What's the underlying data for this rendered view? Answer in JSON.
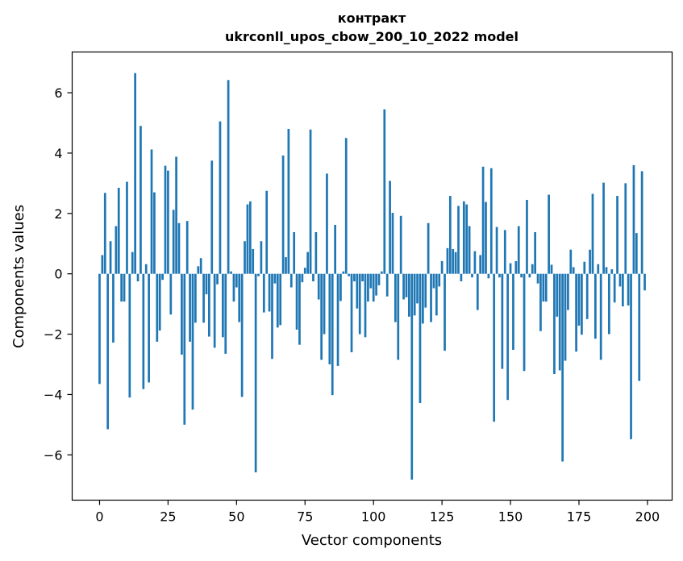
{
  "chart_data": {
    "type": "bar",
    "title": "контракт",
    "subtitle": "ukrconll_upos_cbow_200_10_2022 model",
    "xlabel": "Vector components",
    "ylabel": "Components values",
    "xlim": [
      -10,
      209
    ],
    "ylim": [
      -7.5,
      7.35
    ],
    "xticks": [
      0,
      25,
      50,
      75,
      100,
      125,
      150,
      175,
      200
    ],
    "yticks": [
      -6,
      -4,
      -2,
      0,
      2,
      4,
      6
    ],
    "xtick_labels": [
      "0",
      "25",
      "50",
      "75",
      "100",
      "125",
      "150",
      "175",
      "200"
    ],
    "ytick_labels": [
      "−6",
      "−4",
      "−2",
      "0",
      "2",
      "4",
      "6"
    ],
    "bar_color": "#1f77b4",
    "grid": false,
    "x": [
      0,
      1,
      2,
      3,
      4,
      5,
      6,
      7,
      8,
      9,
      10,
      11,
      12,
      13,
      14,
      15,
      16,
      17,
      18,
      19,
      20,
      21,
      22,
      23,
      24,
      25,
      26,
      27,
      28,
      29,
      30,
      31,
      32,
      33,
      34,
      35,
      36,
      37,
      38,
      39,
      40,
      41,
      42,
      43,
      44,
      45,
      46,
      47,
      48,
      49,
      50,
      51,
      52,
      53,
      54,
      55,
      56,
      57,
      58,
      59,
      60,
      61,
      62,
      63,
      64,
      65,
      66,
      67,
      68,
      69,
      70,
      71,
      72,
      73,
      74,
      75,
      76,
      77,
      78,
      79,
      80,
      81,
      82,
      83,
      84,
      85,
      86,
      87,
      88,
      89,
      90,
      91,
      92,
      93,
      94,
      95,
      96,
      97,
      98,
      99,
      100,
      101,
      102,
      103,
      104,
      105,
      106,
      107,
      108,
      109,
      110,
      111,
      112,
      113,
      114,
      115,
      116,
      117,
      118,
      119,
      120,
      121,
      122,
      123,
      124,
      125,
      126,
      127,
      128,
      129,
      130,
      131,
      132,
      133,
      134,
      135,
      136,
      137,
      138,
      139,
      140,
      141,
      142,
      143,
      144,
      145,
      146,
      147,
      148,
      149,
      150,
      151,
      152,
      153,
      154,
      155,
      156,
      157,
      158,
      159,
      160,
      161,
      162,
      163,
      164,
      165,
      166,
      167,
      168,
      169,
      170,
      171,
      172,
      173,
      174,
      175,
      176,
      177,
      178,
      179,
      180,
      181,
      182,
      183,
      184,
      185,
      186,
      187,
      188,
      189,
      190,
      191,
      192,
      193,
      194,
      195,
      196,
      197,
      198,
      199
    ],
    "values": [
      -3.65,
      0.62,
      2.68,
      -5.15,
      1.08,
      -2.28,
      1.58,
      2.85,
      -0.92,
      -0.92,
      3.05,
      -4.1,
      0.72,
      6.65,
      -0.25,
      4.9,
      -3.82,
      0.32,
      -3.6,
      4.12,
      2.7,
      -2.25,
      -1.88,
      -0.2,
      3.58,
      3.42,
      -1.35,
      2.12,
      3.88,
      1.68,
      -2.68,
      -5.0,
      1.75,
      -2.25,
      -4.5,
      -1.62,
      0.25,
      0.52,
      -1.62,
      -0.68,
      -2.08,
      3.75,
      -2.45,
      -0.35,
      5.05,
      -2.1,
      -2.65,
      6.42,
      0.08,
      -0.92,
      -0.45,
      -1.6,
      -4.08,
      1.08,
      2.3,
      2.4,
      0.82,
      -6.58,
      -0.08,
      1.08,
      -1.28,
      2.75,
      -1.25,
      -2.82,
      -0.32,
      -1.78,
      -1.7,
      3.92,
      0.55,
      4.8,
      -0.45,
      1.38,
      -1.85,
      -2.35,
      -0.28,
      0.2,
      0.72,
      4.78,
      -0.25,
      1.38,
      -0.85,
      -2.85,
      -2.0,
      3.32,
      -3.0,
      -4.02,
      1.62,
      -3.05,
      -0.9,
      0.08,
      4.5,
      -0.08,
      -2.6,
      -0.25,
      -1.15,
      -2.0,
      -0.25,
      -2.1,
      -0.92,
      -0.48,
      -0.92,
      -0.72,
      -0.38,
      0.08,
      5.45,
      -0.75,
      3.08,
      2.02,
      -1.6,
      -2.85,
      1.92,
      -0.85,
      -0.78,
      -1.42,
      -6.82,
      -1.38,
      -0.98,
      -4.28,
      -1.65,
      -1.12,
      1.68,
      -1.6,
      -0.48,
      -1.38,
      -0.42,
      0.42,
      -2.55,
      0.85,
      2.58,
      0.82,
      0.72,
      2.25,
      -0.25,
      2.4,
      2.3,
      1.58,
      -0.12,
      0.75,
      -1.2,
      0.62,
      3.55,
      2.38,
      -0.15,
      3.5,
      -4.9,
      1.55,
      -0.12,
      -3.15,
      1.45,
      -4.18,
      0.35,
      -2.52,
      0.42,
      1.58,
      -0.12,
      -3.22,
      2.45,
      -0.12,
      0.32,
      1.38,
      -0.32,
      -1.9,
      -0.92,
      -0.92,
      2.62,
      0.3,
      -3.32,
      -1.42,
      -3.2,
      -6.22,
      -2.88,
      -1.2,
      0.8,
      0.22,
      -2.58,
      -1.72,
      -2.02,
      0.4,
      -1.5,
      0.8,
      2.65,
      -2.15,
      0.32,
      -2.85,
      3.02,
      0.22,
      -2.0,
      0.15,
      -0.95,
      2.58,
      -0.42,
      -1.08,
      3.0,
      -1.05,
      -5.48,
      3.6,
      1.35,
      -3.55,
      3.4,
      -0.55
    ]
  }
}
